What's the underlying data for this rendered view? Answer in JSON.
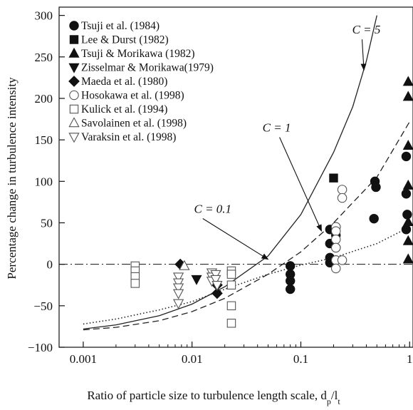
{
  "chart_data": {
    "type": "scatter",
    "xlabel": "Ratio of particle size to turbulence length scale, d",
    "xlabel_sub_p": "p",
    "xlabel_slash": "/l",
    "xlabel_sub_t": "t",
    "ylabel": "Percentage change in turbulence intensity",
    "x_scale": "log",
    "xlim": [
      0.0006,
      1.09
    ],
    "ylim": [
      -100,
      310
    ],
    "x_ticks": [
      {
        "value": 0.001,
        "label": "0.001"
      },
      {
        "value": 0.01,
        "label": "0.01"
      },
      {
        "value": 0.1,
        "label": "0.1"
      },
      {
        "value": 1,
        "label": "1"
      }
    ],
    "y_ticks": [
      {
        "value": -100,
        "label": "−100"
      },
      {
        "value": -50,
        "label": "−50"
      },
      {
        "value": 0,
        "label": "0"
      },
      {
        "value": 50,
        "label": "50"
      },
      {
        "value": 100,
        "label": "100"
      },
      {
        "value": 150,
        "label": "150"
      },
      {
        "value": 200,
        "label": "200"
      },
      {
        "value": 250,
        "label": "250"
      },
      {
        "value": 300,
        "label": "300"
      }
    ],
    "grid": false,
    "legend_position": "top-left",
    "zero_line": {
      "y": 0,
      "style": "dash-dot"
    },
    "series": [
      {
        "name": "Tsuji et al. (1984)",
        "marker": "filled-circle",
        "points": [
          [
            0.08,
            -2
          ],
          [
            0.08,
            -12
          ],
          [
            0.08,
            -20
          ],
          [
            0.08,
            -30
          ],
          [
            0.185,
            42
          ],
          [
            0.185,
            25
          ],
          [
            0.185,
            8
          ],
          [
            0.185,
            2
          ],
          [
            0.21,
            45
          ],
          [
            0.21,
            35
          ],
          [
            0.21,
            20
          ],
          [
            0.21,
            5
          ],
          [
            0.47,
            55
          ],
          [
            0.48,
            100
          ],
          [
            0.49,
            93
          ],
          [
            0.93,
            130
          ],
          [
            0.93,
            85
          ],
          [
            0.93,
            42
          ],
          [
            0.95,
            60
          ]
        ]
      },
      {
        "name": "Lee & Durst (1982)",
        "marker": "filled-square",
        "points": [
          [
            0.2,
            104
          ]
        ]
      },
      {
        "name": "Tsuji & Morikawa (1982)",
        "marker": "filled-triangle-up",
        "points": [
          [
            0.97,
            220
          ],
          [
            0.97,
            202
          ],
          [
            0.97,
            143
          ],
          [
            0.97,
            95
          ],
          [
            0.97,
            51
          ],
          [
            0.97,
            28
          ],
          [
            0.97,
            6
          ]
        ]
      },
      {
        "name": "Zisselmar & Morikawa(1979)",
        "marker": "filled-triangle-down",
        "points": [
          [
            0.011,
            -18
          ]
        ]
      },
      {
        "name": "Maeda et al. (1980)",
        "marker": "filled-diamond",
        "points": [
          [
            0.0078,
            0
          ],
          [
            0.017,
            -25
          ],
          [
            0.017,
            -35
          ]
        ]
      },
      {
        "name": "Hosokawa et al. (1998)",
        "marker": "open-circle",
        "points": [
          [
            0.21,
            45
          ],
          [
            0.21,
            40
          ],
          [
            0.21,
            30
          ],
          [
            0.21,
            20
          ],
          [
            0.21,
            5
          ],
          [
            0.21,
            -5
          ],
          [
            0.24,
            90
          ],
          [
            0.24,
            80
          ],
          [
            0.24,
            5
          ]
        ]
      },
      {
        "name": "Kulick et al. (1994)",
        "marker": "open-square",
        "points": [
          [
            0.003,
            -2
          ],
          [
            0.003,
            -8
          ],
          [
            0.003,
            -15
          ],
          [
            0.003,
            -23
          ],
          [
            0.023,
            -8
          ],
          [
            0.023,
            -12
          ],
          [
            0.023,
            -25
          ],
          [
            0.023,
            -50
          ],
          [
            0.023,
            -71
          ]
        ]
      },
      {
        "name": "Savolainen et al. (1998)",
        "marker": "open-triangle-up",
        "points": [
          [
            0.0085,
            -2
          ]
        ]
      },
      {
        "name": "Varaksin et al. (1998)",
        "marker": "open-triangle-down",
        "points": [
          [
            0.0075,
            -15
          ],
          [
            0.0075,
            -22
          ],
          [
            0.0075,
            -28
          ],
          [
            0.0075,
            -35
          ],
          [
            0.0075,
            -47
          ],
          [
            0.0152,
            -10
          ],
          [
            0.0152,
            -15
          ],
          [
            0.0152,
            -20
          ],
          [
            0.0165,
            -12
          ],
          [
            0.0165,
            -18
          ],
          [
            0.017,
            -25
          ]
        ]
      }
    ],
    "curves": [
      {
        "label": "C = 5",
        "style": "solid",
        "points": [
          [
            0.001,
            -78
          ],
          [
            0.002,
            -73
          ],
          [
            0.005,
            -62
          ],
          [
            0.01,
            -48
          ],
          [
            0.02,
            -27
          ],
          [
            0.05,
            10
          ],
          [
            0.1,
            60
          ],
          [
            0.2,
            135
          ],
          [
            0.3,
            190
          ],
          [
            0.4,
            245
          ],
          [
            0.5,
            300
          ]
        ]
      },
      {
        "label": "C = 1",
        "style": "dashed",
        "points": [
          [
            0.001,
            -79
          ],
          [
            0.002,
            -76
          ],
          [
            0.005,
            -68
          ],
          [
            0.01,
            -57
          ],
          [
            0.02,
            -41
          ],
          [
            0.05,
            -12
          ],
          [
            0.1,
            15
          ],
          [
            0.2,
            50
          ],
          [
            0.5,
            105
          ],
          [
            1,
            172
          ]
        ]
      },
      {
        "label": "C = 0.1",
        "style": "dotted",
        "points": [
          [
            0.001,
            -72
          ],
          [
            0.002,
            -66
          ],
          [
            0.005,
            -55
          ],
          [
            0.01,
            -45
          ],
          [
            0.02,
            -30
          ],
          [
            0.05,
            -12
          ],
          [
            0.1,
            -1
          ],
          [
            0.2,
            8
          ],
          [
            0.5,
            25
          ],
          [
            1,
            45
          ]
        ]
      }
    ],
    "annotations": [
      {
        "text": "C = 5",
        "text_at": [
          0.4,
          278
        ],
        "arrow_to": [
          0.38,
          234
        ]
      },
      {
        "text": "C = 1",
        "text_at": [
          0.06,
          160
        ],
        "arrow_to": [
          0.155,
          40
        ]
      },
      {
        "text": "C = 0.1",
        "text_at": [
          0.0155,
          62
        ],
        "arrow_to": [
          0.05,
          6
        ]
      }
    ]
  }
}
